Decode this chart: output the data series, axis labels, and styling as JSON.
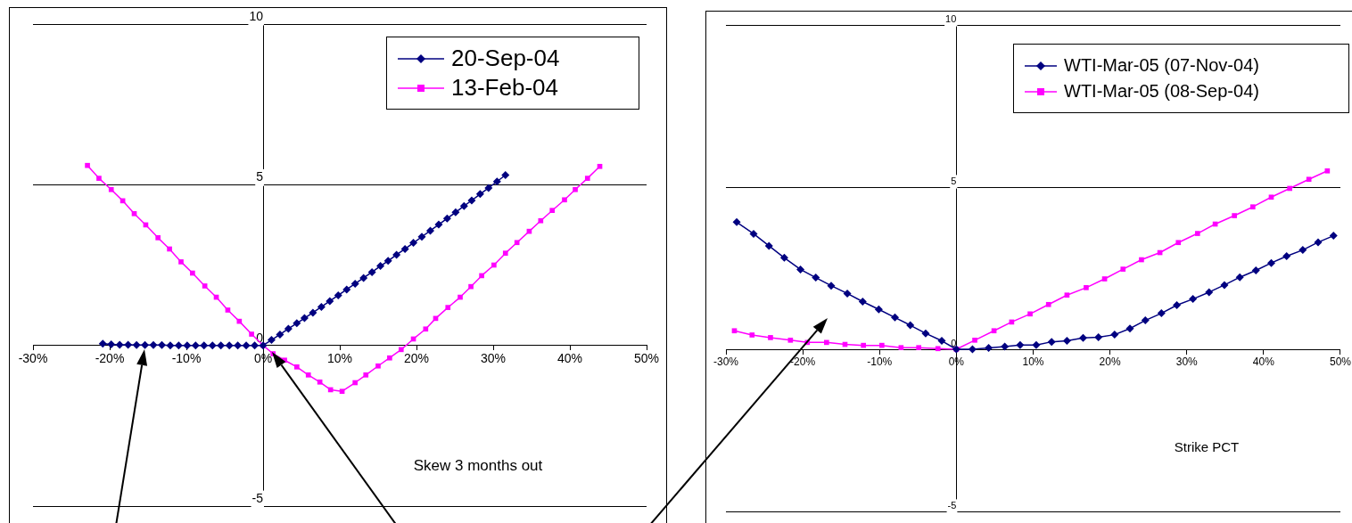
{
  "chart_data": [
    {
      "type": "line",
      "annotations": [
        "Skew 3 months out"
      ],
      "xlim": [
        -30,
        50
      ],
      "ylim": [
        -5,
        10
      ],
      "xticks": [
        {
          "value": -30,
          "label": "-30%"
        },
        {
          "value": -20,
          "label": "-20%"
        },
        {
          "value": -10,
          "label": "-10%"
        },
        {
          "value": 0,
          "label": "0%"
        },
        {
          "value": 10,
          "label": "10%"
        },
        {
          "value": 20,
          "label": "20%"
        },
        {
          "value": 30,
          "label": "30%"
        },
        {
          "value": 40,
          "label": "40%"
        },
        {
          "value": 50,
          "label": "50%"
        }
      ],
      "yticks": [
        -5,
        0,
        5,
        10
      ],
      "grid": "y",
      "legend": "top right",
      "line_style": "solid",
      "series": [
        {
          "name": "20-Sep-04",
          "color": "#000080",
          "marker": "diamond",
          "x": [
            -20.9,
            -19.8,
            -18.7,
            -17.6,
            -16.5,
            -15.4,
            -14.3,
            -13.2,
            -12.1,
            -11,
            -9.9,
            -8.8,
            -7.7,
            -6.6,
            -5.5,
            -4.4,
            -3.3,
            -2.2,
            -1.1,
            0,
            1.1,
            2.2,
            3.3,
            4.4,
            5.4,
            6.5,
            7.6,
            8.7,
            9.8,
            10.9,
            12,
            13.1,
            14.2,
            15.3,
            16.3,
            17.4,
            18.5,
            19.6,
            20.7,
            21.8,
            22.9,
            24,
            25.1,
            26.2,
            27.2,
            28.3,
            29.4,
            30.5,
            31.6
          ],
          "values": [
            0.05,
            0.03,
            0.02,
            0.02,
            0.01,
            0.01,
            0.01,
            0.01,
            0,
            0,
            0,
            0,
            0,
            0,
            0,
            0,
            0,
            0,
            0,
            0,
            0.17,
            0.34,
            0.52,
            0.69,
            0.85,
            1.02,
            1.2,
            1.38,
            1.56,
            1.74,
            1.92,
            2.1,
            2.28,
            2.47,
            2.63,
            2.82,
            3,
            3.19,
            3.38,
            3.57,
            3.76,
            3.95,
            4.14,
            4.34,
            4.51,
            4.71,
            4.9,
            5.1,
            5.3
          ]
        },
        {
          "name": "13-Feb-04",
          "color": "#ff00ff",
          "marker": "square",
          "x": [
            -22.9,
            -21.4,
            -19.8,
            -18.3,
            -16.8,
            -15.3,
            -13.7,
            -12.2,
            -10.7,
            -9.2,
            -7.6,
            -6.1,
            -4.6,
            -3.1,
            -1.5,
            0,
            1.3,
            2.8,
            4.4,
            5.9,
            7.4,
            8.8,
            10.3,
            12,
            13.4,
            15,
            16.5,
            18,
            19.6,
            21.2,
            22.5,
            24.1,
            25.7,
            27.1,
            28.5,
            30.1,
            31.6,
            33.1,
            34.7,
            36.2,
            37.7,
            39.3,
            40.7,
            42.3,
            43.9
          ],
          "values": [
            5.6,
            5.2,
            4.85,
            4.5,
            4.1,
            3.75,
            3.35,
            3,
            2.6,
            2.25,
            1.85,
            1.5,
            1.1,
            0.75,
            0.35,
            0,
            -0.26,
            -0.46,
            -0.67,
            -0.92,
            -1.14,
            -1.38,
            -1.43,
            -1.16,
            -0.92,
            -0.64,
            -0.39,
            -0.13,
            0.2,
            0.51,
            0.84,
            1.18,
            1.5,
            1.83,
            2.17,
            2.5,
            2.87,
            3.2,
            3.55,
            3.88,
            4.2,
            4.53,
            4.85,
            5.2,
            5.57
          ]
        }
      ]
    },
    {
      "type": "line",
      "annotations": [
        "Strike PCT"
      ],
      "xlim": [
        -30,
        50
      ],
      "ylim": [
        -5,
        10
      ],
      "xticks": [
        {
          "value": -30,
          "label": "-30%"
        },
        {
          "value": -20,
          "label": "-20%"
        },
        {
          "value": -10,
          "label": "-10%"
        },
        {
          "value": 0,
          "label": "0%"
        },
        {
          "value": 10,
          "label": "10%"
        },
        {
          "value": 20,
          "label": "20%"
        },
        {
          "value": 30,
          "label": "30%"
        },
        {
          "value": 40,
          "label": "40%"
        },
        {
          "value": 50,
          "label": "50%"
        }
      ],
      "yticks": [
        -5,
        0,
        5,
        10
      ],
      "grid": "y",
      "legend": "top right",
      "line_style": "solid",
      "series": [
        {
          "name": "WTI-Mar-05 (07-Nov-04)",
          "color": "#000080",
          "marker": "diamond",
          "x": [
            -28.6,
            -26.4,
            -24.4,
            -22.4,
            -20.3,
            -18.3,
            -16.3,
            -14.2,
            -12.2,
            -10.1,
            -8,
            -6,
            -4,
            -1.9,
            0,
            2.1,
            4.2,
            6.3,
            8.3,
            10.4,
            12.4,
            14.4,
            16.5,
            18.5,
            20.6,
            22.6,
            24.6,
            26.7,
            28.7,
            30.8,
            32.9,
            34.9,
            36.9,
            39,
            41,
            43,
            45.1,
            47.1,
            49.1
          ],
          "values": [
            3.92,
            3.56,
            3.19,
            2.82,
            2.46,
            2.21,
            1.96,
            1.72,
            1.47,
            1.23,
            0.98,
            0.74,
            0.49,
            0.26,
            0,
            0,
            0.04,
            0.08,
            0.13,
            0.13,
            0.23,
            0.26,
            0.35,
            0.37,
            0.45,
            0.64,
            0.89,
            1.11,
            1.36,
            1.55,
            1.76,
            1.98,
            2.22,
            2.43,
            2.66,
            2.87,
            3.06,
            3.3,
            3.5
          ]
        },
        {
          "name": "WTI-Mar-05 (08-Sep-04)",
          "color": "#ff00ff",
          "marker": "square",
          "x": [
            -28.9,
            -26.6,
            -24.2,
            -21.6,
            -19.4,
            -16.9,
            -14.5,
            -12.1,
            -9.7,
            -7.2,
            -4.9,
            -2.4,
            0,
            2.4,
            4.9,
            7.2,
            9.6,
            12,
            14.4,
            16.9,
            19.3,
            21.7,
            24.1,
            26.5,
            28.9,
            31.4,
            33.7,
            36.2,
            38.6,
            41,
            43.4,
            45.9,
            48.3
          ],
          "values": [
            0.57,
            0.44,
            0.36,
            0.28,
            0.21,
            0.21,
            0.15,
            0.12,
            0.12,
            0.05,
            0.05,
            0.02,
            0,
            0.28,
            0.57,
            0.84,
            1.09,
            1.38,
            1.67,
            1.9,
            2.17,
            2.47,
            2.76,
            2.98,
            3.29,
            3.57,
            3.86,
            4.12,
            4.39,
            4.69,
            4.96,
            5.24,
            5.5
          ]
        }
      ]
    }
  ]
}
